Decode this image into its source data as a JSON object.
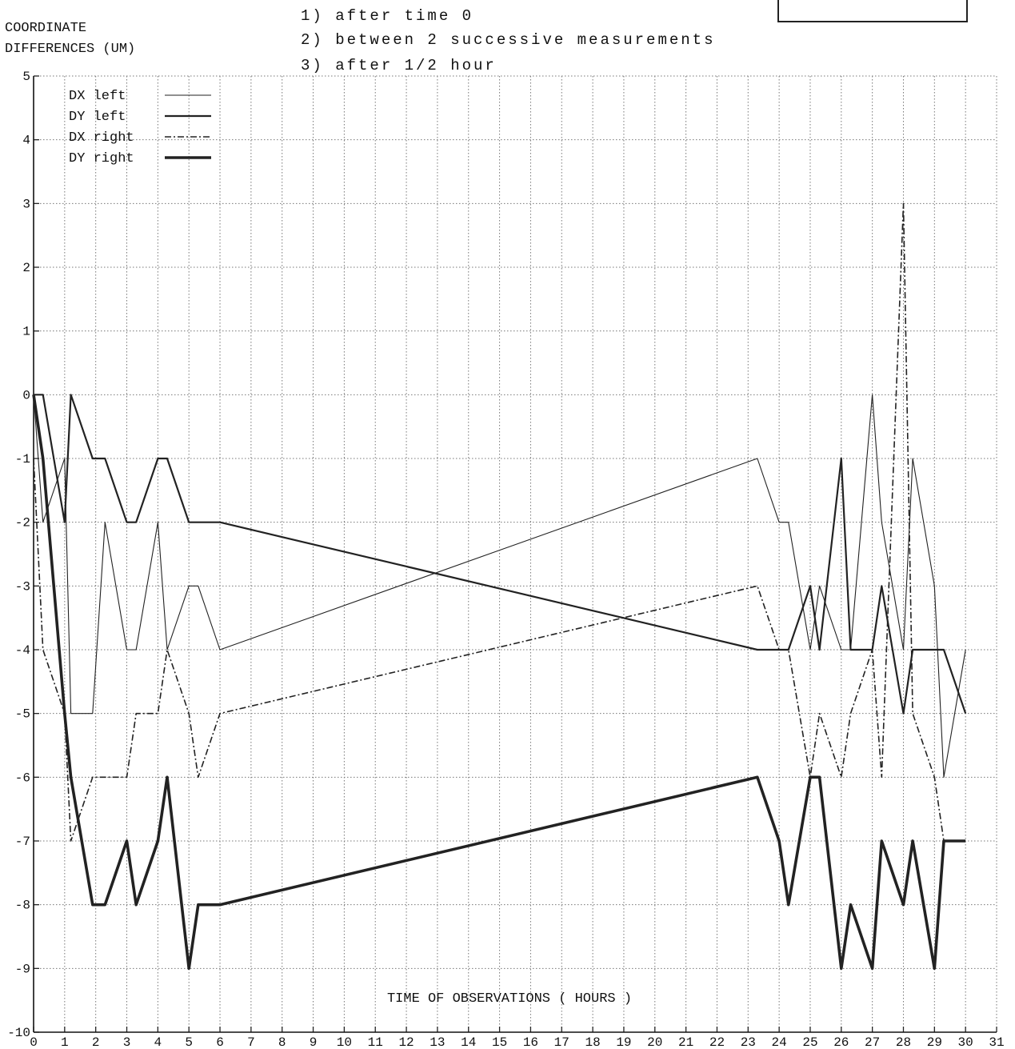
{
  "header": {
    "ylabel_line1": "COORDINATE",
    "ylabel_line2": "DIFFERENCES (UM)",
    "notes": [
      "1) after time 0",
      "2) between 2 successive measurements",
      "3) after 1/2 hour"
    ]
  },
  "chart_data": {
    "type": "line",
    "xlabel": "TIME OF OBSERVATIONS ( HOURS )",
    "ylabel": "COORDINATE DIFFERENCES (UM)",
    "xlim": [
      0,
      31
    ],
    "ylim": [
      -10,
      5
    ],
    "x_ticks": [
      0,
      1,
      2,
      3,
      4,
      5,
      6,
      7,
      8,
      9,
      10,
      11,
      12,
      13,
      14,
      15,
      16,
      17,
      18,
      19,
      20,
      21,
      22,
      23,
      24,
      25,
      26,
      27,
      28,
      29,
      30,
      31
    ],
    "y_ticks": [
      5,
      4,
      3,
      2,
      1,
      0,
      -1,
      -2,
      -3,
      -4,
      -5,
      -6,
      -7,
      -8,
      -9,
      -10
    ],
    "grid": true,
    "legend_position": "top-left",
    "series": [
      {
        "name": "DX left",
        "style": "thin",
        "points": [
          [
            0,
            0
          ],
          [
            0.3,
            -2
          ],
          [
            1,
            -1
          ],
          [
            1.2,
            -5
          ],
          [
            1.9,
            -5
          ],
          [
            2.3,
            -2
          ],
          [
            3,
            -4
          ],
          [
            3.3,
            -4
          ],
          [
            4,
            -2
          ],
          [
            4.3,
            -4
          ],
          [
            5,
            -3
          ],
          [
            5.3,
            -3
          ],
          [
            6,
            -4
          ],
          [
            23.3,
            -1
          ],
          [
            24,
            -2
          ],
          [
            24.3,
            -2
          ],
          [
            25,
            -4
          ],
          [
            25.3,
            -3
          ],
          [
            26,
            -4
          ],
          [
            26.3,
            -4
          ],
          [
            27,
            0
          ],
          [
            27.3,
            -2
          ],
          [
            28,
            -4
          ],
          [
            28.3,
            -1
          ],
          [
            29,
            -3
          ],
          [
            29.3,
            -6
          ],
          [
            30,
            -4
          ]
        ]
      },
      {
        "name": "DY left",
        "style": "medium",
        "points": [
          [
            0,
            0
          ],
          [
            0.3,
            0
          ],
          [
            1,
            -2
          ],
          [
            1.2,
            0
          ],
          [
            1.9,
            -1
          ],
          [
            2.3,
            -1
          ],
          [
            3,
            -2
          ],
          [
            3.3,
            -2
          ],
          [
            4,
            -1
          ],
          [
            4.3,
            -1
          ],
          [
            5,
            -2
          ],
          [
            5.3,
            -2
          ],
          [
            6,
            -2
          ],
          [
            23.3,
            -4
          ],
          [
            24,
            -4
          ],
          [
            24.3,
            -4
          ],
          [
            25,
            -3
          ],
          [
            25.3,
            -4
          ],
          [
            26,
            -1
          ],
          [
            26.3,
            -4
          ],
          [
            27,
            -4
          ],
          [
            27.3,
            -3
          ],
          [
            28,
            -5
          ],
          [
            28.3,
            -4
          ],
          [
            29,
            -4
          ],
          [
            29.3,
            -4
          ],
          [
            30,
            -5
          ]
        ]
      },
      {
        "name": "DX right",
        "style": "dashdot",
        "points": [
          [
            0,
            -1
          ],
          [
            0.3,
            -4
          ],
          [
            1,
            -5
          ],
          [
            1.2,
            -7
          ],
          [
            1.9,
            -6
          ],
          [
            2.3,
            -6
          ],
          [
            3,
            -6
          ],
          [
            3.3,
            -5
          ],
          [
            4,
            -5
          ],
          [
            4.3,
            -4
          ],
          [
            5,
            -5
          ],
          [
            5.3,
            -6
          ],
          [
            6,
            -5
          ],
          [
            23.3,
            -3
          ],
          [
            24,
            -4
          ],
          [
            24.3,
            -4
          ],
          [
            25,
            -6
          ],
          [
            25.3,
            -5
          ],
          [
            26,
            -6
          ],
          [
            26.3,
            -5
          ],
          [
            27,
            -4
          ],
          [
            27.3,
            -6
          ],
          [
            28,
            3
          ],
          [
            28.3,
            -5
          ],
          [
            29,
            -6
          ],
          [
            29.3,
            -7
          ],
          [
            30,
            -7
          ]
        ]
      },
      {
        "name": "DY right",
        "style": "thick",
        "points": [
          [
            0,
            0
          ],
          [
            0.3,
            -1
          ],
          [
            1,
            -5
          ],
          [
            1.2,
            -6
          ],
          [
            1.9,
            -8
          ],
          [
            2.3,
            -8
          ],
          [
            3,
            -7
          ],
          [
            3.3,
            -8
          ],
          [
            4,
            -7
          ],
          [
            4.3,
            -6
          ],
          [
            5,
            -9
          ],
          [
            5.3,
            -8
          ],
          [
            6,
            -8
          ],
          [
            23.3,
            -6
          ],
          [
            24,
            -7
          ],
          [
            24.3,
            -8
          ],
          [
            25,
            -6
          ],
          [
            25.3,
            -6
          ],
          [
            26,
            -9
          ],
          [
            26.3,
            -8
          ],
          [
            27,
            -9
          ],
          [
            27.3,
            -7
          ],
          [
            28,
            -8
          ],
          [
            28.3,
            -7
          ],
          [
            29,
            -9
          ],
          [
            29.3,
            -7
          ],
          [
            30,
            -7
          ]
        ]
      }
    ]
  }
}
